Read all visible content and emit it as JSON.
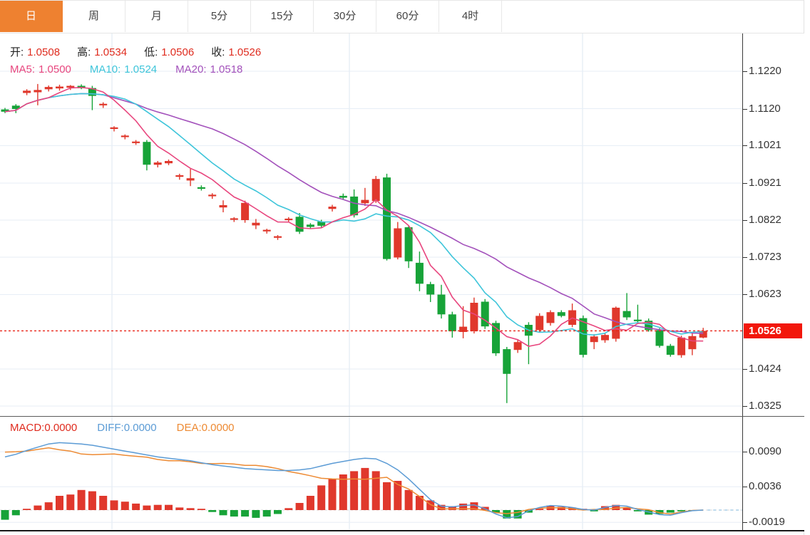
{
  "toolbar": {
    "active_index": 0,
    "tabs": [
      {
        "label": "日",
        "slug": "day"
      },
      {
        "label": "周",
        "slug": "week"
      },
      {
        "label": "月",
        "slug": "month"
      },
      {
        "label": "5分",
        "slug": "5min"
      },
      {
        "label": "15分",
        "slug": "15min"
      },
      {
        "label": "30分",
        "slug": "30min"
      },
      {
        "label": "60分",
        "slug": "60min"
      },
      {
        "label": "4时",
        "slug": "4hour"
      }
    ]
  },
  "legend": {
    "open_label": "开:",
    "open_value": "1.0508",
    "high_label": "高:",
    "high_value": "1.0534",
    "low_label": "低:",
    "low_value": "1.0506",
    "close_label": "收:",
    "close_value": "1.0526",
    "ma5_label": "MA5:",
    "ma5_value": "1.0500",
    "ma10_label": "MA10:",
    "ma10_value": "1.0524",
    "ma20_label": "MA20:",
    "ma20_value": "1.0518"
  },
  "macd_legend": {
    "macd_label": "MACD:",
    "macd_value": "0.0000",
    "diff_label": "DIFF:",
    "diff_value": "0.0000",
    "dea_label": "DEA:",
    "dea_value": "0.0000"
  },
  "colors": {
    "up": "#e0382c",
    "down": "#17a338",
    "price_line": "#e82418",
    "tag_bg": "#f2170b",
    "value_red": "#df2b1e",
    "ma5": "#e8467e",
    "ma10": "#3ec5da",
    "ma20": "#a351bb",
    "diff": "#5b9bd5",
    "dea": "#ed8a33",
    "tab_active_bg": "#ee8130",
    "grid_h": "#e7eef6",
    "grid_v": "#dce7f2",
    "axis_text": "#333333"
  },
  "chart_data": [
    {
      "type": "candlestick",
      "note": "daily FX candles, Chinese convention: red=up, green=down",
      "legend_position": "top-left",
      "grid": true,
      "ylim": [
        1.0296,
        1.1325
      ],
      "y_ticks": [
        "1.1220",
        "1.1120",
        "1.1021",
        "1.0921",
        "1.0822",
        "1.0723",
        "1.0623",
        "1.0424",
        "1.0325"
      ],
      "last_price": "1.0526",
      "ma_periods": [
        5,
        10,
        20
      ],
      "candles": [
        [
          1.1118,
          1.1122,
          1.1108,
          1.1112
        ],
        [
          1.1128,
          1.1132,
          1.1108,
          1.1119
        ],
        [
          1.1162,
          1.1172,
          1.1156,
          1.1168
        ],
        [
          1.1164,
          1.1186,
          1.1129,
          1.117
        ],
        [
          1.1172,
          1.1182,
          1.1166,
          1.1178
        ],
        [
          1.1174,
          1.1184,
          1.1168,
          1.1179
        ],
        [
          1.1176,
          1.1183,
          1.117,
          1.1181
        ],
        [
          1.1181,
          1.1185,
          1.1172,
          1.1175
        ],
        [
          1.1175,
          1.1181,
          1.1116,
          1.1154
        ],
        [
          1.113,
          1.1137,
          1.1122,
          1.1133
        ],
        [
          1.1066,
          1.1073,
          1.1059,
          1.107
        ],
        [
          1.1044,
          1.1051,
          1.1038,
          1.1048
        ],
        [
          1.1029,
          1.1036,
          1.1023,
          1.1032
        ],
        [
          1.1031,
          1.1036,
          1.0955,
          1.097
        ],
        [
          1.097,
          1.098,
          1.0963,
          1.0976
        ],
        [
          1.0974,
          1.0984,
          1.0969,
          1.098
        ],
        [
          1.0938,
          1.0946,
          1.093,
          1.0942
        ],
        [
          1.0928,
          1.0959,
          1.0913,
          1.0934
        ],
        [
          1.091,
          1.0915,
          1.0901,
          1.0906
        ],
        [
          1.0886,
          1.0894,
          1.0879,
          1.089
        ],
        [
          1.0856,
          1.0875,
          1.0843,
          1.0862
        ],
        [
          1.0823,
          1.083,
          1.0817,
          1.0827
        ],
        [
          1.0822,
          1.0874,
          1.0815,
          1.0868
        ],
        [
          1.0808,
          1.0825,
          1.0798,
          1.0815
        ],
        [
          1.0792,
          1.0799,
          1.0786,
          1.0796
        ],
        [
          1.0775,
          1.0782,
          1.0769,
          1.0779
        ],
        [
          1.0822,
          1.083,
          1.0816,
          1.0826
        ],
        [
          1.0831,
          1.0841,
          1.0785,
          1.0791
        ],
        [
          1.081,
          1.0814,
          1.0799,
          1.0804
        ],
        [
          1.0818,
          1.0823,
          1.0803,
          1.0807
        ],
        [
          1.0852,
          1.0863,
          1.0845,
          1.0858
        ],
        [
          1.0887,
          1.0893,
          1.0876,
          1.0882
        ],
        [
          1.0885,
          1.0904,
          1.0829,
          1.0835
        ],
        [
          1.0867,
          1.0908,
          1.086,
          1.0876
        ],
        [
          1.0873,
          1.094,
          1.0868,
          1.0932
        ],
        [
          1.0936,
          1.0946,
          1.0714,
          1.0718
        ],
        [
          1.0722,
          1.0817,
          1.0717,
          1.08
        ],
        [
          1.0803,
          1.0807,
          1.0694,
          1.0712
        ],
        [
          1.0708,
          1.0738,
          1.0632,
          1.0652
        ],
        [
          1.0651,
          1.0657,
          1.0603,
          1.0623
        ],
        [
          1.0623,
          1.0649,
          1.0559,
          1.057
        ],
        [
          1.057,
          1.0577,
          1.0508,
          1.0525
        ],
        [
          1.0523,
          1.0592,
          1.0506,
          1.0537
        ],
        [
          1.0525,
          1.0615,
          1.0519,
          1.0601
        ],
        [
          1.0604,
          1.0611,
          1.0531,
          1.0538
        ],
        [
          1.0547,
          1.0553,
          1.0459,
          1.0466
        ],
        [
          1.0477,
          1.0483,
          1.0333,
          1.0411
        ],
        [
          1.0475,
          1.0501,
          1.0467,
          1.0496
        ],
        [
          1.0542,
          1.0549,
          1.0437,
          1.0513
        ],
        [
          1.0528,
          1.0573,
          1.0521,
          1.0566
        ],
        [
          1.0547,
          1.0581,
          1.054,
          1.0576
        ],
        [
          1.0576,
          1.0581,
          1.0562,
          1.0566
        ],
        [
          1.0542,
          1.0599,
          1.0536,
          1.0581
        ],
        [
          1.056,
          1.0567,
          1.0455,
          1.0462
        ],
        [
          1.0496,
          1.0517,
          1.0477,
          1.0511
        ],
        [
          1.0501,
          1.0521,
          1.0494,
          1.0515
        ],
        [
          1.0505,
          1.0591,
          1.0497,
          1.0588
        ],
        [
          1.0579,
          1.0627,
          1.0555,
          1.0562
        ],
        [
          1.0556,
          1.0596,
          1.0547,
          1.0552
        ],
        [
          1.0553,
          1.0559,
          1.0524,
          1.0528
        ],
        [
          1.0528,
          1.0533,
          1.0481,
          1.0486
        ],
        [
          1.0486,
          1.0491,
          1.0457,
          1.0462
        ],
        [
          1.0461,
          1.0513,
          1.0454,
          1.0508
        ],
        [
          1.0477,
          1.0521,
          1.0461,
          1.0512
        ],
        [
          1.0508,
          1.0534,
          1.0506,
          1.0526
        ]
      ]
    },
    {
      "type": "bar",
      "name": "MACD",
      "grid": true,
      "ylim": [
        -0.0035,
        0.0144
      ],
      "y_ticks": [
        "0.0090",
        "0.0036",
        "-0.0019"
      ],
      "histogram": [
        -0.0015,
        -0.0008,
        0.0002,
        0.0007,
        0.0012,
        0.0022,
        0.0024,
        0.0031,
        0.0029,
        0.0022,
        0.0015,
        0.0013,
        0.001,
        0.0007,
        0.0008,
        0.0008,
        0.0004,
        0.0003,
        0.0002,
        -0.0003,
        -0.0008,
        -0.001,
        -0.001,
        -0.0012,
        -0.001,
        -0.0006,
        0.0003,
        0.0011,
        0.0022,
        0.0038,
        0.0048,
        0.0055,
        0.006,
        0.0065,
        0.006,
        0.0043,
        0.0045,
        0.0031,
        0.0022,
        0.0015,
        0.0008,
        0.0006,
        0.001,
        0.0012,
        0.0005,
        -0.0004,
        -0.0013,
        -0.0013,
        -0.0004,
        0.0002,
        0.0007,
        0.0005,
        0.0004,
        0.0002,
        -0.0002,
        0.0006,
        0.0008,
        0.0004,
        -0.0002,
        -0.0007,
        -0.0006,
        -0.0004,
        -0.0002,
        -0.0001,
        0.0
      ],
      "diff": [
        0.0082,
        0.0086,
        0.0092,
        0.0097,
        0.0102,
        0.0104,
        0.0103,
        0.0102,
        0.01,
        0.0097,
        0.0094,
        0.0091,
        0.0088,
        0.0085,
        0.0082,
        0.008,
        0.0078,
        0.0076,
        0.0073,
        0.007,
        0.0068,
        0.0066,
        0.0064,
        0.0063,
        0.0062,
        0.0061,
        0.0061,
        0.0062,
        0.0064,
        0.0068,
        0.0072,
        0.0075,
        0.0078,
        0.008,
        0.0079,
        0.0072,
        0.0062,
        0.0048,
        0.0032,
        0.0016,
        0.0006,
        0.0005,
        0.0007,
        0.0008,
        0.0002,
        -0.0006,
        -0.0012,
        -0.001,
        -0.0001,
        0.0004,
        0.0007,
        0.0006,
        0.0004,
        0.0001,
        0.0,
        0.0004,
        0.0007,
        0.0006,
        0.0001,
        -0.0003,
        -0.0007,
        -0.0008,
        -0.0004,
        -0.0001,
        0.0
      ],
      "dea": [
        0.00895,
        0.009,
        0.0091,
        0.00935,
        0.0096,
        0.0093,
        0.0091,
        0.00865,
        0.00855,
        0.0086,
        0.00865,
        0.00845,
        0.0083,
        0.00815,
        0.0078,
        0.0076,
        0.0076,
        0.00745,
        0.0072,
        0.00715,
        0.0072,
        0.0071,
        0.0069,
        0.0069,
        0.0067,
        0.0064,
        0.00595,
        0.00565,
        0.0053,
        0.0049,
        0.0048,
        0.00475,
        0.0048,
        0.00475,
        0.0049,
        0.00505,
        0.00395,
        0.00325,
        0.0021,
        0.00085,
        0.0002,
        0.0002,
        0.0002,
        0.0002,
        -5e-05,
        -0.0004,
        -0.00055,
        -0.00035,
        0.0001,
        0.0003,
        0.00035,
        0.00035,
        0.0002,
        0.0,
        0.0001,
        0.0001,
        0.0003,
        0.0004,
        0.0002,
        5e-05,
        -0.0004,
        -0.0006,
        -0.0003,
        -5e-05,
        0.0
      ]
    }
  ]
}
